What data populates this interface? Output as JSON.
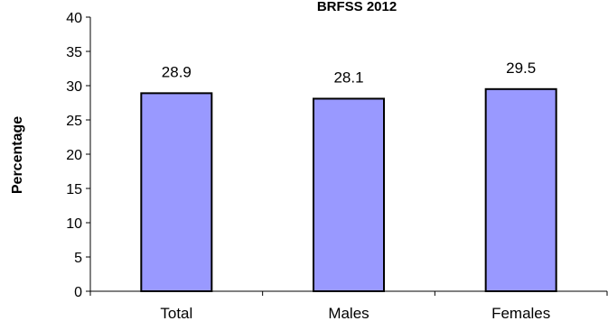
{
  "chart_data": {
    "type": "bar",
    "title": "BRFSS 2012",
    "xlabel": "",
    "ylabel": "Percentage",
    "categories": [
      "Total",
      "Males",
      "Females"
    ],
    "values": [
      28.9,
      28.1,
      29.5
    ],
    "data_labels": [
      "28.9",
      "28.1",
      "29.5"
    ],
    "ylim": [
      0,
      40
    ],
    "y_ticks": [
      0,
      5,
      10,
      15,
      20,
      25,
      30,
      35,
      40
    ],
    "grid": false,
    "legend": "none",
    "colors": {
      "bar_fill": "#9999ff",
      "bar_stroke": "#000000"
    }
  }
}
